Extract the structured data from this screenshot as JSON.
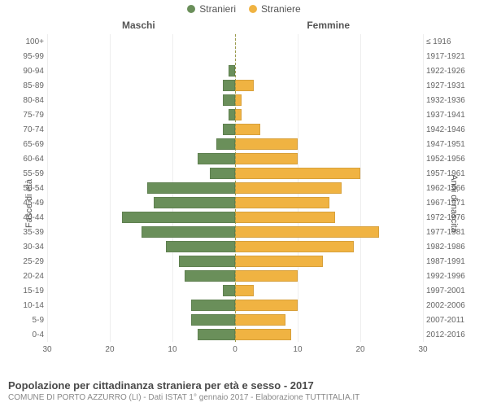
{
  "legend": {
    "items": [
      {
        "label": "Stranieri",
        "color": "#6a8f5a"
      },
      {
        "label": "Straniere",
        "color": "#f0b342"
      }
    ]
  },
  "sub_left": "Maschi",
  "sub_right": "Femmine",
  "axis_left_label": "Fasce di età",
  "axis_right_label": "Anni di nascita",
  "chart": {
    "type": "population-pyramid",
    "background_color": "#ffffff",
    "grid_color": "#eeeeee",
    "center_dash_color": "#9a9a4a",
    "xlim": 30,
    "xticks_left": [
      30,
      20,
      10,
      0
    ],
    "xticks_right": [
      0,
      10,
      20,
      30
    ],
    "male_color": "#6a8f5a",
    "female_color": "#f0b342",
    "label_fontsize": 10,
    "rows": [
      {
        "age": "100+",
        "year": "≤ 1916",
        "m": 0,
        "f": 0
      },
      {
        "age": "95-99",
        "year": "1917-1921",
        "m": 0,
        "f": 0
      },
      {
        "age": "90-94",
        "year": "1922-1926",
        "m": 1,
        "f": 0
      },
      {
        "age": "85-89",
        "year": "1927-1931",
        "m": 2,
        "f": 3
      },
      {
        "age": "80-84",
        "year": "1932-1936",
        "m": 2,
        "f": 1
      },
      {
        "age": "75-79",
        "year": "1937-1941",
        "m": 1,
        "f": 1
      },
      {
        "age": "70-74",
        "year": "1942-1946",
        "m": 2,
        "f": 4
      },
      {
        "age": "65-69",
        "year": "1947-1951",
        "m": 3,
        "f": 10
      },
      {
        "age": "60-64",
        "year": "1952-1956",
        "m": 6,
        "f": 10
      },
      {
        "age": "55-59",
        "year": "1957-1961",
        "m": 4,
        "f": 20
      },
      {
        "age": "50-54",
        "year": "1962-1966",
        "m": 14,
        "f": 17
      },
      {
        "age": "45-49",
        "year": "1967-1971",
        "m": 13,
        "f": 15
      },
      {
        "age": "40-44",
        "year": "1972-1976",
        "m": 18,
        "f": 16
      },
      {
        "age": "35-39",
        "year": "1977-1981",
        "m": 15,
        "f": 23
      },
      {
        "age": "30-34",
        "year": "1982-1986",
        "m": 11,
        "f": 19
      },
      {
        "age": "25-29",
        "year": "1987-1991",
        "m": 9,
        "f": 14
      },
      {
        "age": "20-24",
        "year": "1992-1996",
        "m": 8,
        "f": 10
      },
      {
        "age": "15-19",
        "year": "1997-2001",
        "m": 2,
        "f": 3
      },
      {
        "age": "10-14",
        "year": "2002-2006",
        "m": 7,
        "f": 10
      },
      {
        "age": "5-9",
        "year": "2007-2011",
        "m": 7,
        "f": 8
      },
      {
        "age": "0-4",
        "year": "2012-2016",
        "m": 6,
        "f": 9
      }
    ]
  },
  "footer_title": "Popolazione per cittadinanza straniera per età e sesso - 2017",
  "footer_sub": "COMUNE DI PORTO AZZURRO (LI) - Dati ISTAT 1° gennaio 2017 - Elaborazione TUTTITALIA.IT"
}
